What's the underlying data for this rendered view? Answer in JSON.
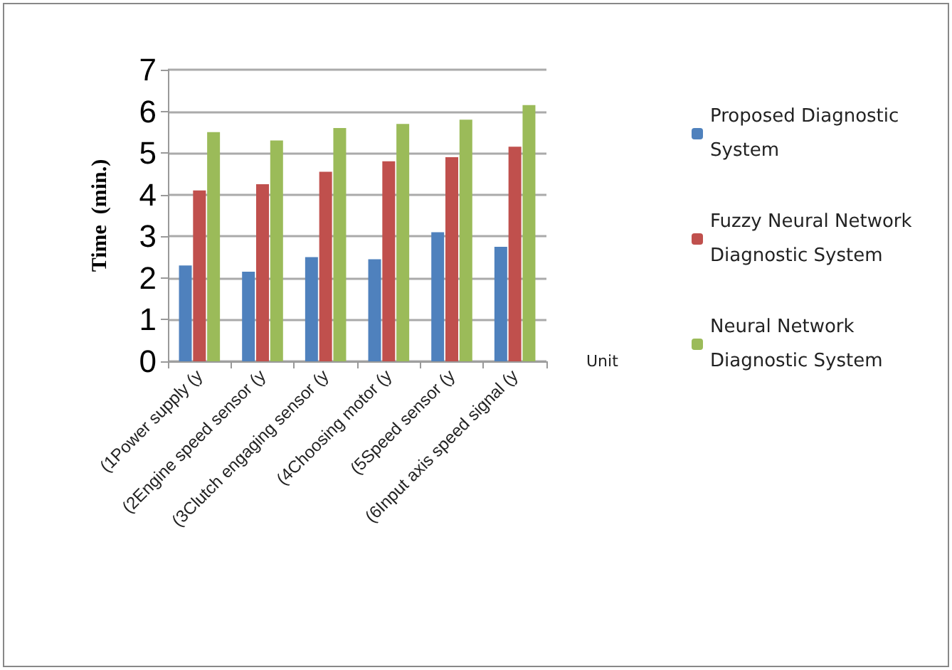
{
  "chart_data": {
    "type": "bar",
    "xlabel": "Unit",
    "ylabel": "Time  (min.)",
    "categories": [
      "(1Power supply (y",
      "(2Engine speed sensor (y",
      "(3Clutch engaging sensor (y",
      "(4Choosing motor (y",
      "(5Speed sensor (y",
      "(6Input axis speed signal (y"
    ],
    "series": [
      {
        "name": "Proposed Diagnostic System",
        "color": "#4f81bd",
        "values": [
          2.3,
          2.15,
          2.5,
          2.45,
          3.1,
          2.75
        ]
      },
      {
        "name": "Fuzzy Neural Network Diagnostic System",
        "color": "#c0504d",
        "values": [
          4.1,
          4.25,
          4.55,
          4.8,
          4.9,
          5.15
        ]
      },
      {
        "name": "Neural Network Diagnostic System",
        "color": "#9bbb59",
        "values": [
          5.5,
          5.3,
          5.6,
          5.7,
          5.8,
          6.15
        ]
      }
    ],
    "ylim": [
      0,
      7
    ],
    "yticks": [
      0,
      1,
      2,
      3,
      4,
      5,
      6,
      7
    ],
    "grid": "y",
    "legend": "right"
  }
}
